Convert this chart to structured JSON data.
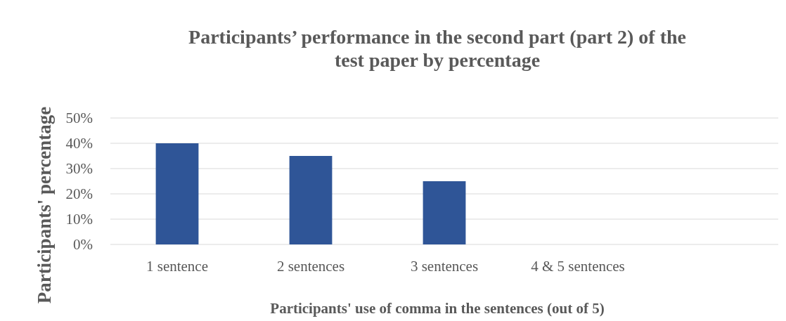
{
  "chart_data": {
    "type": "bar",
    "title": "Participants’ performance in the second part (part 2) of the test paper by percentage",
    "xlabel": "Participants' use of comma in the sentences (out of 5)",
    "ylabel": "Participants' percentage",
    "categories": [
      "1 sentence",
      "2 sentences",
      "3 sentences",
      "4 & 5 sentences",
      null
    ],
    "values": [
      40,
      35,
      25,
      0,
      null
    ],
    "color": "#2f5597",
    "ylim": [
      0,
      50
    ],
    "yticks": [
      {
        "value": 0,
        "label": "0%"
      },
      {
        "value": 10,
        "label": "10%"
      },
      {
        "value": 20,
        "label": "20%"
      },
      {
        "value": 30,
        "label": "30%"
      },
      {
        "value": 40,
        "label": "40%"
      },
      {
        "value": 50,
        "label": "50%"
      }
    ],
    "grid": "y"
  }
}
